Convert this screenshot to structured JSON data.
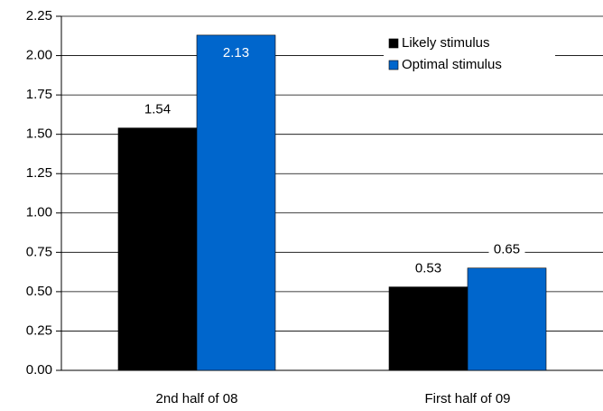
{
  "chart_data": {
    "type": "bar",
    "categories": [
      "2nd half of 08",
      "First half of 09"
    ],
    "series": [
      {
        "name": "Likely stimulus",
        "color": "#000000",
        "values": [
          1.54,
          0.53
        ]
      },
      {
        "name": "Optimal stimulus",
        "color": "#0066cc",
        "values": [
          2.13,
          0.65
        ]
      }
    ],
    "ylim": [
      0,
      2.25
    ],
    "yticks": [
      {
        "value": 0,
        "label": "0.00"
      },
      {
        "value": 0.25,
        "label": "0.25"
      },
      {
        "value": 0.5,
        "label": "0.50"
      },
      {
        "value": 0.75,
        "label": "0.75"
      },
      {
        "value": 1,
        "label": "1.00"
      },
      {
        "value": 1.25,
        "label": "1.25"
      },
      {
        "value": 1.5,
        "label": "1.50"
      },
      {
        "value": 1.75,
        "label": "1.75"
      },
      {
        "value": 2,
        "label": "2.00"
      },
      {
        "value": 2.25,
        "label": "2.25"
      }
    ],
    "grid": true,
    "legend": "upper-right"
  }
}
